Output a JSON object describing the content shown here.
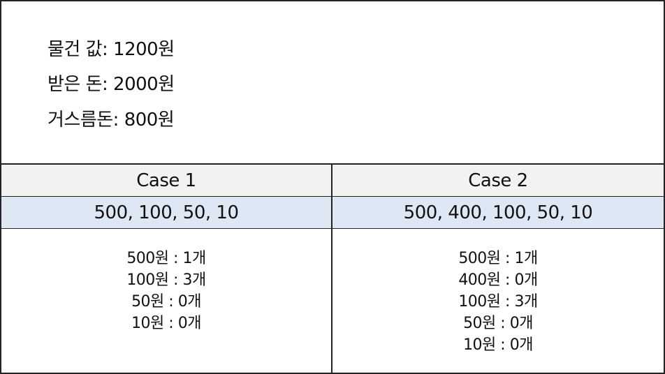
{
  "info": {
    "price": "물건 값: 1200원",
    "paid": "받은 돈: 2000원",
    "change": "거스름돈: 800원"
  },
  "table": {
    "headers": [
      "Case 1",
      "Case 2"
    ],
    "coins": [
      "500, 100, 50, 10",
      "500, 400, 100, 50, 10"
    ],
    "case1_results": [
      "500원 : 1개",
      "100원 : 3개",
      "50원 : 0개",
      "10원 : 0개"
    ],
    "case2_results": [
      "500원 : 1개",
      "400원 : 0개",
      "100원 : 3개",
      "50원 : 0개",
      "10원 : 0개"
    ]
  }
}
